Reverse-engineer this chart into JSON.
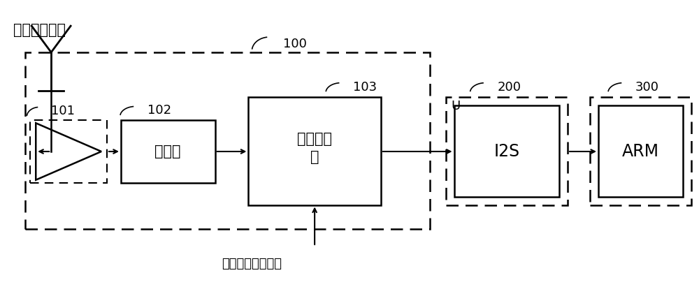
{
  "bg_color": "#ffffff",
  "title_text": "卫星通信信号",
  "label_100": "100",
  "label_101": "101",
  "label_102": "102",
  "label_103": "103",
  "label_200": "200",
  "label_300": "300",
  "box_102_text": "滤波器",
  "box_103_text": "正交混频\n器",
  "box_i2s_text": "I2S",
  "box_arm_text": "ARM",
  "label_U": "U",
  "label_rf": "预设射频本振信号",
  "line_color": "#000000",
  "dash_color": "#000000",
  "font_size_label": 13,
  "font_size_box": 15,
  "font_size_title": 15,
  "font_size_num": 13
}
